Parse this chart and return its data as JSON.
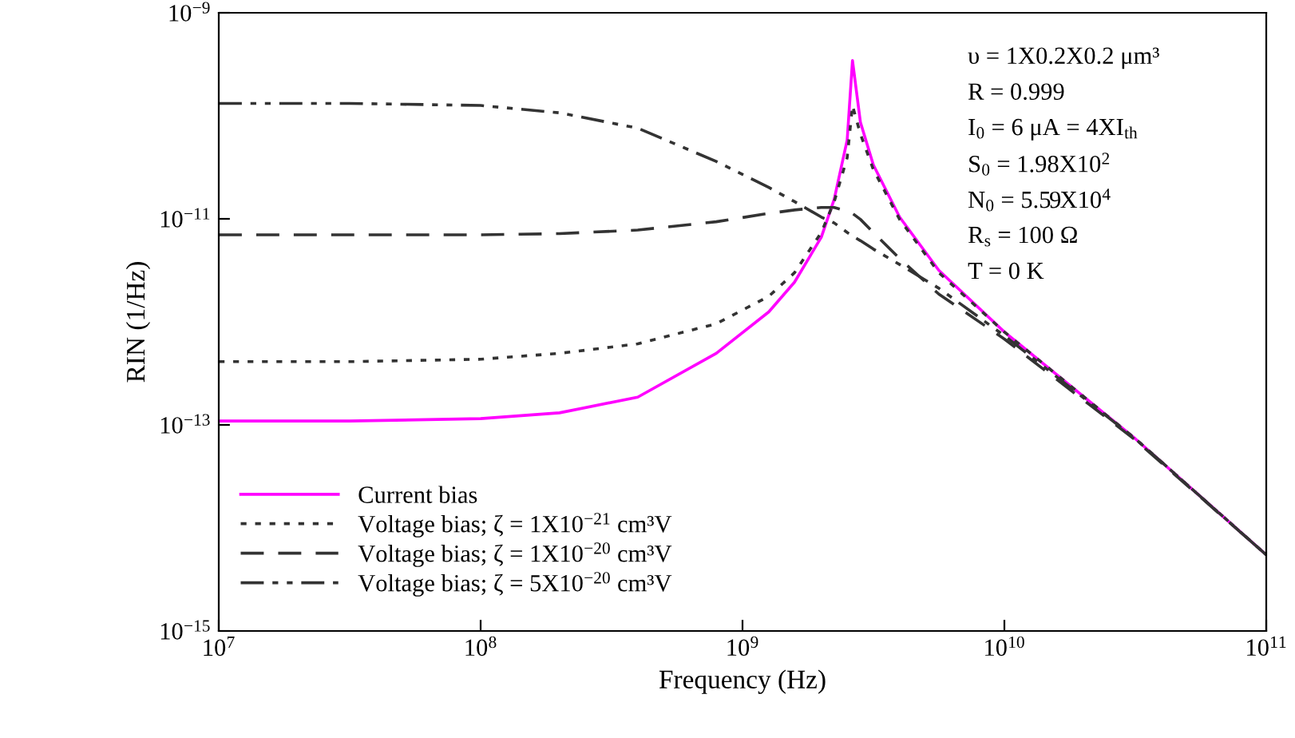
{
  "chart_data": {
    "type": "line",
    "xlabel": "Frequency (Hz)",
    "ylabel": "RIN (1/Hz)",
    "log": "xy",
    "grid": false,
    "legend": "bottom left",
    "xlim": [
      10000000.0,
      100000000000.0
    ],
    "ylim": [
      1e-15,
      1e-09
    ],
    "xticks": [
      {
        "value": 10000000.0,
        "label": "10$^{7}$"
      },
      {
        "value": 100000000.0,
        "label": "10$^{8}$"
      },
      {
        "value": 1000000000.0,
        "label": "10$^{9}$"
      },
      {
        "value": 10000000000.0,
        "label": "10$^{10}$"
      },
      {
        "value": 100000000000.0,
        "label": "10$^{11}$"
      }
    ],
    "yticks": [
      {
        "value": 1e-15,
        "label": "10$^{−15}$"
      },
      {
        "value": 1e-13,
        "label": "10$^{−13}$"
      },
      {
        "value": 1e-11,
        "label": "10$^{−11}$"
      },
      {
        "value": 1e-09,
        "label": "10$^{−9}$"
      }
    ],
    "x": [
      10000000.0,
      31600000.0,
      100000000.0,
      200000000.0,
      398000000.0,
      794000000.0,
      1260000000.0,
      1580000000.0,
      2000000000.0,
      2240000000.0,
      2510000000.0,
      2630000000.0,
      2820000000.0,
      3160000000.0,
      3980000000.0,
      5620000000.0,
      10000000000.0,
      31600000000.0,
      100000000000.0
    ],
    "series": [
      {
        "name": "Current bias",
        "color": "#ff00ff",
        "line_style": "solid",
        "values": [
          1.09e-13,
          1.09e-13,
          1.15e-13,
          1.31e-13,
          1.86e-13,
          4.95e-13,
          1.25e-12,
          2.43e-12,
          6.64e-12,
          1.55e-11,
          5.82e-11,
          3.44e-10,
          8.67e-11,
          3.34e-11,
          1.04e-11,
          3.16e-12,
          7.98e-13,
          7.35e-14,
          5.48e-15
        ]
      },
      {
        "name": "Voltage bias; ζ = 1X10$^{−21}$ cm³V",
        "color": "#333333",
        "line_style": "dotted",
        "values": [
          4.11e-13,
          4.11e-13,
          4.34e-13,
          4.95e-13,
          6.12e-13,
          9.59e-13,
          1.77e-12,
          3e-12,
          7.38e-12,
          1.47e-11,
          3.92e-11,
          1.26e-10,
          6.65e-11,
          3.01e-11,
          9.89e-12,
          3e-12,
          7.98e-13,
          7.35e-14,
          5.48e-15
        ]
      },
      {
        "name": "Voltage bias; ζ = 1X10$^{−20}$ cm³V",
        "color": "#333333",
        "line_style": "dashed",
        "values": [
          7e-12,
          7e-12,
          7e-12,
          7.19e-12,
          7.78e-12,
          9.37e-12,
          1.13e-11,
          1.22e-11,
          1.29e-11,
          1.29e-11,
          1.19e-11,
          1.13e-11,
          9.89e-12,
          7.38e-12,
          4.12e-12,
          1.86e-12,
          6.81e-13,
          7.16e-14,
          5.48e-15
        ]
      },
      {
        "name": "Voltage bias; ζ = 5X10$^{−20}$ cm³V",
        "color": "#333333",
        "line_style": "dashdot",
        "values": [
          1.32e-10,
          1.32e-10,
          1.26e-10,
          1.07e-10,
          7.59e-11,
          3.61e-11,
          2.02e-11,
          1.47e-11,
          1.04e-11,
          9.12e-12,
          7.38e-12,
          6.82e-12,
          6.14e-12,
          5.09e-12,
          3.61e-12,
          2.12e-12,
          7.36e-13,
          7.35e-14,
          5.48e-15
        ]
      }
    ],
    "annotations": [
      "υ = 1X0.2X0.2 μm³",
      "R = 0.999",
      "I$_{0}$ = 6 μA = 4XI$_{th}$",
      "S$_{0}$ = 1.98X10$^{2}$",
      "N$_{0}$ = 5.59X10$^{4}$",
      "R$_{s}$ = 100 Ω",
      "T = 0 K"
    ]
  }
}
